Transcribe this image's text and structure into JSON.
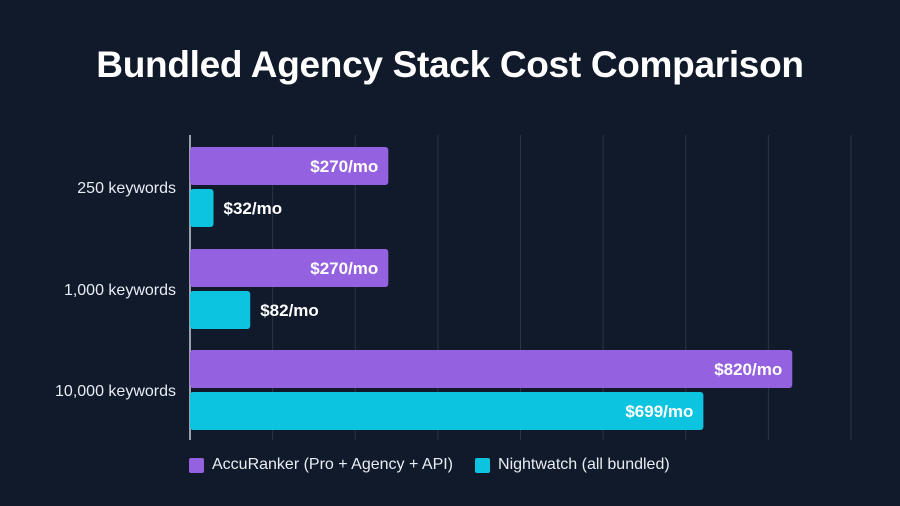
{
  "chart_data": {
    "type": "bar",
    "orientation": "horizontal",
    "title": "Bundled Agency Stack Cost Comparison",
    "categories": [
      "250 keywords",
      "1,000 keywords",
      "10,000 keywords"
    ],
    "series": [
      {
        "name": "AccuRanker (Pro + Agency + API)",
        "color": "#9461e0",
        "values": [
          270,
          270,
          820
        ],
        "labels": [
          "$270/mo",
          "$270/mo",
          "$820/mo"
        ]
      },
      {
        "name": "Nightwatch (all bundled)",
        "color": "#0cc4e0",
        "values": [
          32,
          82,
          699
        ],
        "labels": [
          "$32/mo",
          "$82/mo",
          "$699/mo"
        ]
      }
    ],
    "xlim": [
      0,
      900
    ],
    "grid": true,
    "legend": "bottom",
    "background": "#111a2b"
  }
}
